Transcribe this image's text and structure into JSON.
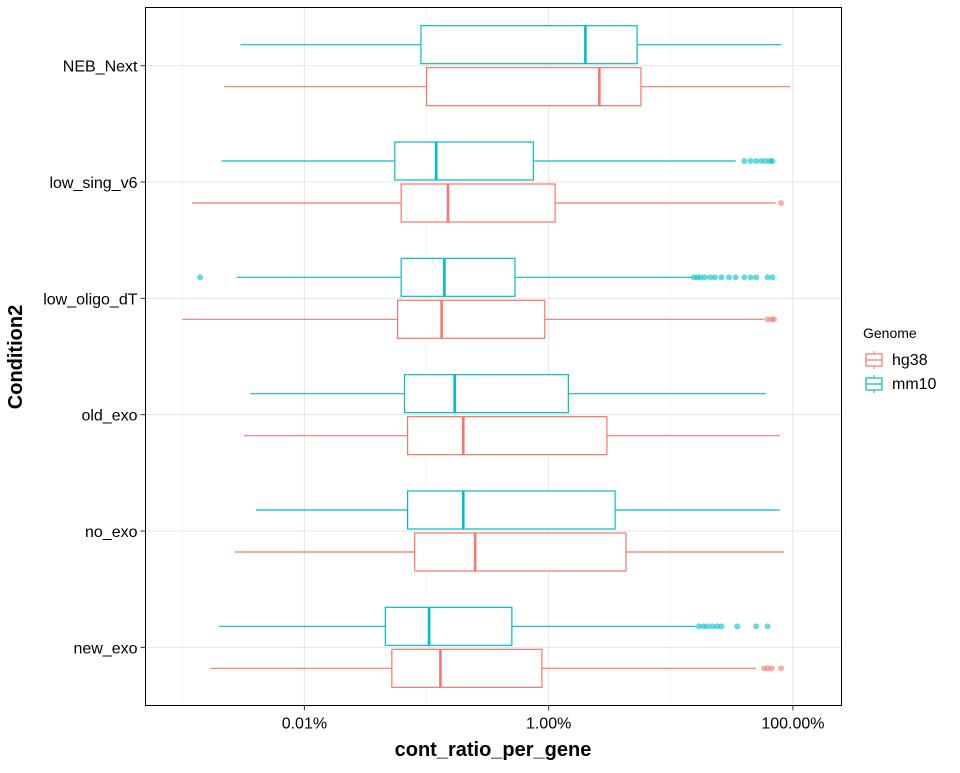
{
  "chart_data": {
    "type": "boxplot",
    "orientation": "horizontal",
    "xlabel": "cont_ratio_per_gene",
    "ylabel": "Condition2",
    "x_scale": "log10",
    "x_unit": "percent",
    "xlim": [
      0.0005,
      250
    ],
    "x_ticks": [
      {
        "value": 0.01,
        "label": "0.01%"
      },
      {
        "value": 1,
        "label": "1.00%"
      },
      {
        "value": 100,
        "label": "100.00%"
      }
    ],
    "x_minor_ticks": [
      0.001,
      0.1,
      10
    ],
    "categories": [
      "NEB_Next",
      "low_sing_v6",
      "low_oligo_dT",
      "old_exo",
      "no_exo",
      "new_exo"
    ],
    "grid": true,
    "legend": {
      "title": "Genome",
      "position": "right",
      "entries": [
        {
          "name": "hg38",
          "color": "#F8766D"
        },
        {
          "name": "mm10",
          "color": "#00BFC4"
        }
      ]
    },
    "series": [
      {
        "name": "hg38",
        "color": "#F8766D",
        "boxes": [
          {
            "category": "NEB_Next",
            "whisker_low": 0.0022,
            "q1": 0.1,
            "median": 2.6,
            "q3": 5.7,
            "whisker_high": 95,
            "outliers": []
          },
          {
            "category": "low_sing_v6",
            "whisker_low": 0.0012,
            "q1": 0.062,
            "median": 0.15,
            "q3": 1.13,
            "whisker_high": 72,
            "outliers": [
              80
            ]
          },
          {
            "category": "low_oligo_dT",
            "whisker_low": 0.001,
            "q1": 0.058,
            "median": 0.133,
            "q3": 0.93,
            "whisker_high": 58,
            "outliers": [
              62,
              67,
              70
            ]
          },
          {
            "category": "old_exo",
            "whisker_low": 0.0032,
            "q1": 0.07,
            "median": 0.2,
            "q3": 3.0,
            "whisker_high": 78,
            "outliers": []
          },
          {
            "category": "no_exo",
            "whisker_low": 0.0027,
            "q1": 0.08,
            "median": 0.25,
            "q3": 4.3,
            "whisker_high": 85,
            "outliers": []
          },
          {
            "category": "new_exo",
            "whisker_low": 0.0017,
            "q1": 0.052,
            "median": 0.13,
            "q3": 0.88,
            "whisker_high": 50,
            "outliers": [
              58,
              62,
              67,
              80
            ]
          }
        ]
      },
      {
        "name": "mm10",
        "color": "#00BFC4",
        "boxes": [
          {
            "category": "NEB_Next",
            "whisker_low": 0.003,
            "q1": 0.09,
            "median": 2.0,
            "q3": 5.3,
            "whisker_high": 80,
            "outliers": []
          },
          {
            "category": "low_sing_v6",
            "whisker_low": 0.0021,
            "q1": 0.055,
            "median": 0.12,
            "q3": 0.75,
            "whisker_high": 34,
            "outliers": [
              40,
              45,
              50,
              55,
              60,
              65,
              68
            ]
          },
          {
            "category": "low_oligo_dT",
            "whisker_low": 0.0028,
            "q1": 0.062,
            "median": 0.14,
            "q3": 0.53,
            "whisker_high": 15,
            "outliers": [
              0.0014,
              15.5,
              16.5,
              17.5,
              19,
              21,
              23,
              26,
              30,
              34,
              40,
              45,
              50,
              62,
              68
            ]
          },
          {
            "category": "old_exo",
            "whisker_low": 0.0036,
            "q1": 0.066,
            "median": 0.17,
            "q3": 1.45,
            "whisker_high": 60,
            "outliers": []
          },
          {
            "category": "no_exo",
            "whisker_low": 0.004,
            "q1": 0.07,
            "median": 0.2,
            "q3": 3.5,
            "whisker_high": 78,
            "outliers": []
          },
          {
            "category": "new_exo",
            "whisker_low": 0.002,
            "q1": 0.046,
            "median": 0.105,
            "q3": 0.5,
            "whisker_high": 16,
            "outliers": [
              17,
              18.5,
              20,
              22,
              24,
              26,
              35,
              50,
              62
            ]
          }
        ]
      }
    ]
  }
}
